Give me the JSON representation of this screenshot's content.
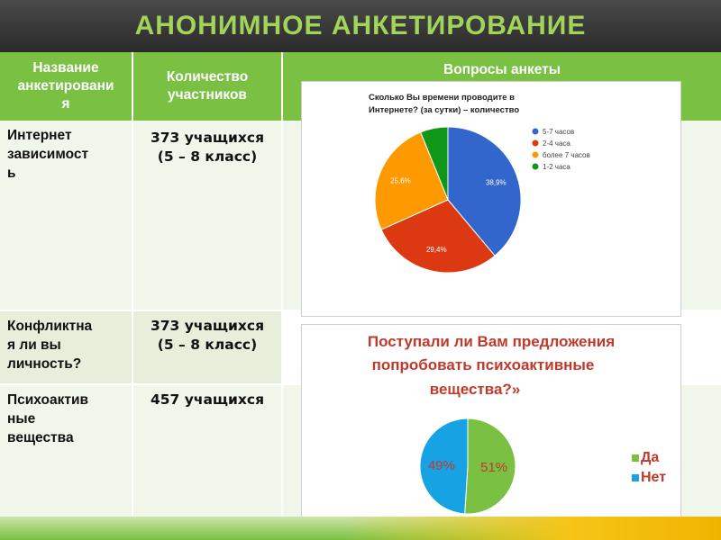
{
  "title": "АНОНИМНОЕ АНКЕТИРОВАНИЕ",
  "header": {
    "col1_line1": "Название",
    "col1_line2": "анкетировани",
    "col1_line3": "я",
    "col2_line1": "Количество",
    "col2_line2": "участников",
    "col3": "Вопросы анкеты"
  },
  "rows": [
    {
      "name_lines": [
        "Интернет",
        "зависимост",
        "ь"
      ],
      "count_line1": "373  учащихся",
      "count_line2": "(5 – 8 класс)"
    },
    {
      "name_lines": [
        "Конфликтна",
        "я ли вы",
        "личность?"
      ],
      "count_line1": "373  учащихся",
      "count_line2": "(5 – 8 класс)"
    },
    {
      "name_lines": [
        "Психоактив",
        "ные",
        "вещества"
      ],
      "count_line1": "457 учащихся",
      "count_line2": ""
    }
  ],
  "chart_data": [
    {
      "type": "pie",
      "title_line1": "Сколько Вы времени проводите в",
      "title_line2": "Интернете? (за сутки) – количество",
      "categories": [
        "5-7 часов",
        "2-4 часа",
        "более 7 часов",
        "1-2 часа"
      ],
      "values": [
        38.9,
        29.4,
        25.6,
        6.1
      ],
      "labels": [
        "38,9%",
        "29,4%",
        "25,6%",
        ""
      ],
      "colors": [
        "#3366cc",
        "#dc3912",
        "#ff9900",
        "#109618"
      ],
      "legend": "right"
    },
    {
      "type": "pie",
      "title_line1": "Поступали ли Вам предложения",
      "title_line2": "попробовать психоактивные",
      "title_line3": "вещества?»",
      "categories": [
        "Да",
        "Нет"
      ],
      "values": [
        51,
        49
      ],
      "labels": [
        "51%",
        "49%"
      ],
      "colors": [
        "#7ac143",
        "#17a3e3"
      ],
      "title_color": "#c0392b",
      "legend": "right"
    }
  ]
}
